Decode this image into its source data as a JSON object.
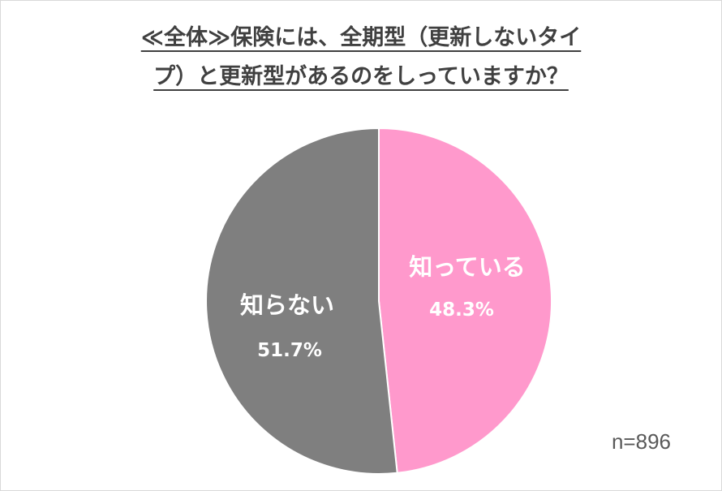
{
  "chart_data": {
    "type": "pie",
    "title_line1": "≪全体≫保険には、全期型（更新しないタイ",
    "title_line2": "プ）と更新型があるのをしっていますか？",
    "slices": [
      {
        "label": "知っている",
        "value": 48.3,
        "value_text": "48.3%",
        "color": "#ff99cc"
      },
      {
        "label": "知らない",
        "value": 51.7,
        "value_text": "51.7%",
        "color": "#7f7f7f"
      }
    ],
    "start_angle": "12 o'clock",
    "direction": "clockwise",
    "note": "n=896"
  }
}
